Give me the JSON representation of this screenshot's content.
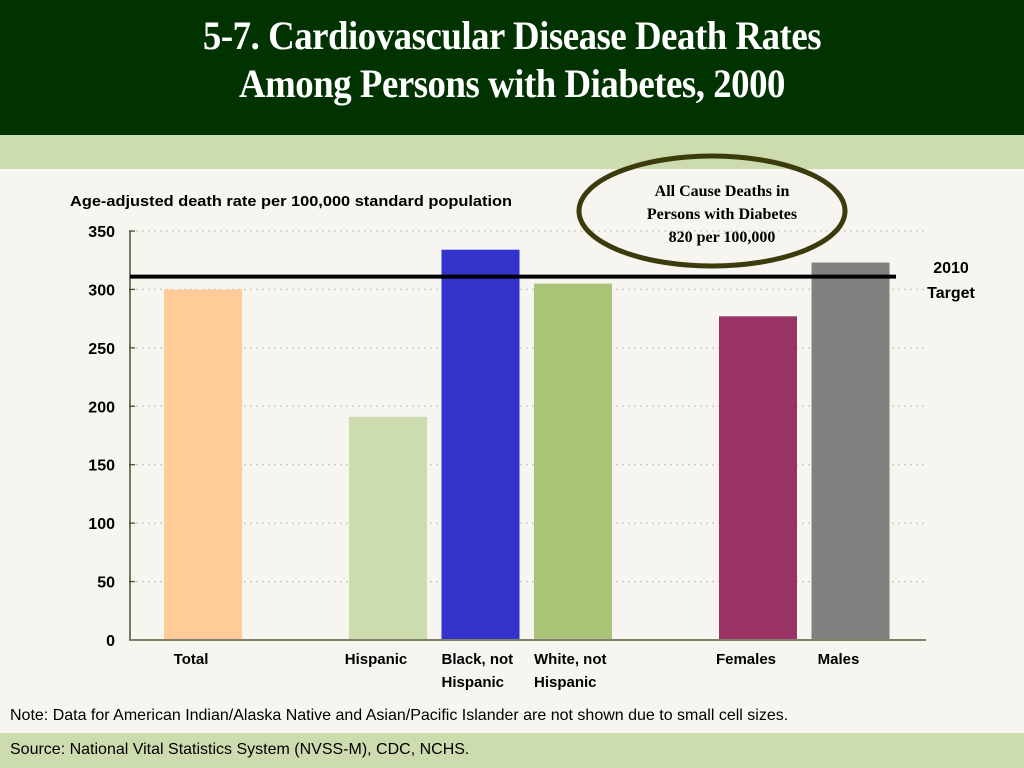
{
  "header": {
    "title_line1": "5-7.  Cardiovascular Disease Death Rates",
    "title_line2": "Among Persons with Diabetes, 2000"
  },
  "callout": {
    "line1": "All Cause Deaths in",
    "line2": "Persons with Diabetes",
    "line3": "820  per 100,000",
    "border_color": "#3b3b0c"
  },
  "target_label": {
    "line1": "2010",
    "line2": "Target"
  },
  "footer": {
    "note": "Note: Data for American Indian/Alaska Native and Asian/Pacific Islander are not shown due to small cell sizes.",
    "source": "Source: National Vital Statistics System (NVSS-M), CDC, NCHS."
  },
  "chart_data": {
    "type": "bar",
    "title": "Cardiovascular Disease Death Rates Among Persons with Diabetes, 2000",
    "ylabel": "Age-adjusted death rate per 100,000 standard population",
    "xlabel": "",
    "ylim": [
      0,
      350
    ],
    "yticks": [
      0,
      50,
      100,
      150,
      200,
      250,
      300,
      350
    ],
    "grid": true,
    "categories": [
      {
        "label_lines": [
          "Total"
        ],
        "value": 300,
        "color": "#ffcc99",
        "slot": 0
      },
      {
        "label_lines": [
          "Hispanic"
        ],
        "value": 191,
        "color": "#cddcaf",
        "slot": 2
      },
      {
        "label_lines": [
          "Black, not",
          "Hispanic"
        ],
        "value": 334,
        "color": "#3333cc",
        "slot": 3
      },
      {
        "label_lines": [
          "White, not",
          "Hispanic"
        ],
        "value": 305,
        "color": "#a9c476",
        "slot": 4
      },
      {
        "label_lines": [
          "Females"
        ],
        "value": 277,
        "color": "#993366",
        "slot": 6
      },
      {
        "label_lines": [
          "Males"
        ],
        "value": 323,
        "color": "#808080",
        "slot": 7
      }
    ],
    "reference_line": {
      "name": "2010 Target",
      "value": 311
    }
  }
}
